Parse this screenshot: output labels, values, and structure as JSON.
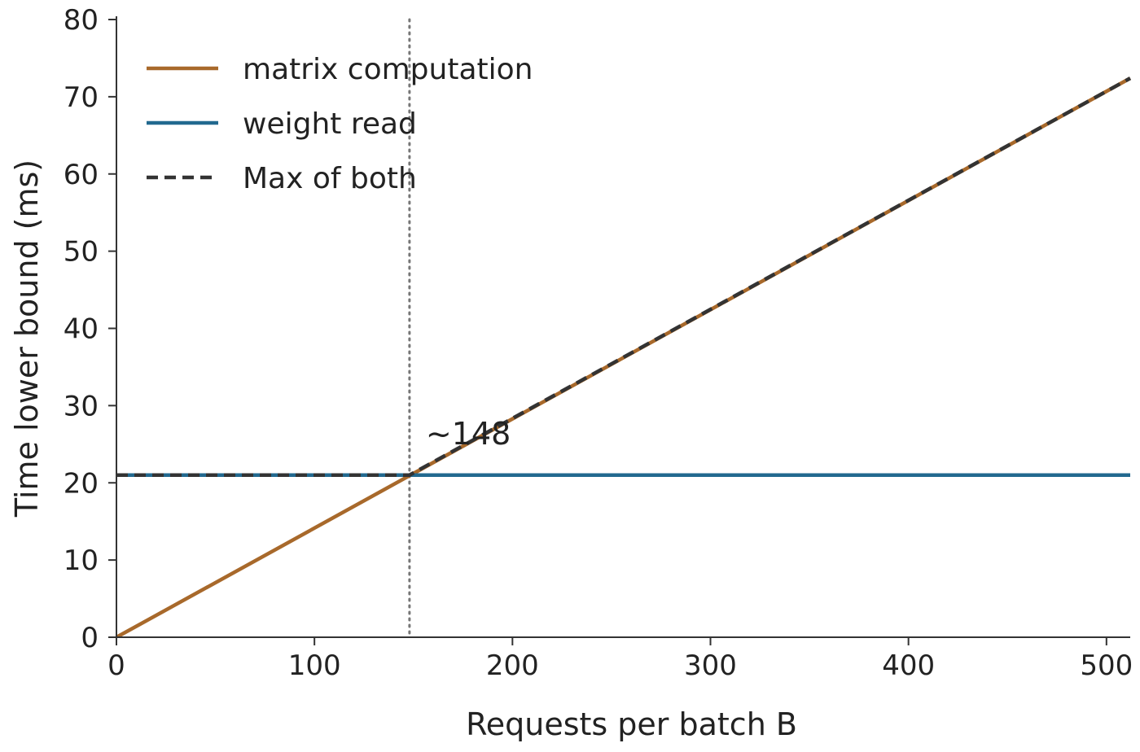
{
  "chart_data": {
    "type": "line",
    "xlabel": "Requests per batch B",
    "ylabel": "Time lower bound (ms)",
    "xlim": [
      0,
      512
    ],
    "ylim": [
      0,
      80
    ],
    "xticks": [
      0,
      100,
      200,
      300,
      400,
      500
    ],
    "yticks": [
      0,
      10,
      20,
      30,
      40,
      50,
      60,
      70,
      80
    ],
    "grid": false,
    "legend_position": "top-left",
    "series": [
      {
        "name": "matrix computation",
        "color": "#a8692b",
        "style": "solid",
        "x": [
          0,
          512
        ],
        "y": [
          0,
          72.4
        ]
      },
      {
        "name": "weight read",
        "color": "#22698f",
        "style": "solid",
        "x": [
          0,
          512
        ],
        "y": [
          21,
          21
        ]
      },
      {
        "name": "Max of both",
        "color": "#333333",
        "style": "dashed",
        "x": [
          0,
          148,
          512
        ],
        "y": [
          21,
          21,
          72.4
        ]
      }
    ],
    "annotations": [
      {
        "text": "~148",
        "x": 148,
        "y": 21,
        "vline": true
      }
    ]
  }
}
